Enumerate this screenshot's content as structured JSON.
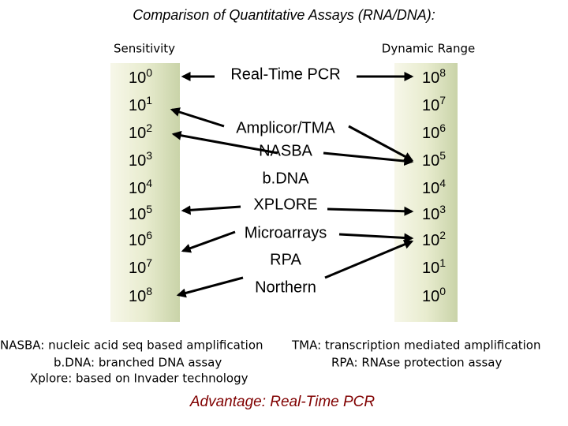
{
  "title": "Comparison of Quantitative Assays (RNA/DNA):",
  "left_header": "Sensitivity",
  "right_header": "Dynamic Range",
  "left_scale": [
    {
      "base": "10",
      "exp": "0"
    },
    {
      "base": "10",
      "exp": "1"
    },
    {
      "base": "10",
      "exp": "2"
    },
    {
      "base": "10",
      "exp": "3"
    },
    {
      "base": "10",
      "exp": "4"
    },
    {
      "base": "10",
      "exp": "5"
    },
    {
      "base": "10",
      "exp": "6"
    },
    {
      "base": "10",
      "exp": "7"
    },
    {
      "base": "10",
      "exp": "8"
    }
  ],
  "right_scale": [
    {
      "base": "10",
      "exp": "8"
    },
    {
      "base": "10",
      "exp": "7"
    },
    {
      "base": "10",
      "exp": "6"
    },
    {
      "base": "10",
      "exp": "5"
    },
    {
      "base": "10",
      "exp": "4"
    },
    {
      "base": "10",
      "exp": "3"
    },
    {
      "base": "10",
      "exp": "2"
    },
    {
      "base": "10",
      "exp": "1"
    },
    {
      "base": "10",
      "exp": "0"
    }
  ],
  "methods": [
    "Real-Time PCR",
    "Amplicor/TMA",
    "NASBA",
    "b.DNA",
    "XPLORE",
    "Microarrays",
    "RPA",
    "Northern"
  ],
  "notes": [
    "NASBA: nucleic acid seq based amplification",
    "TMA: transcription mediated amplification",
    "b.DNA: branched DNA assay",
    "RPA: RNAse protection assay",
    "Xplore: based on Invader technology"
  ],
  "conclusion": "Advantage: Real-Time PCR"
}
